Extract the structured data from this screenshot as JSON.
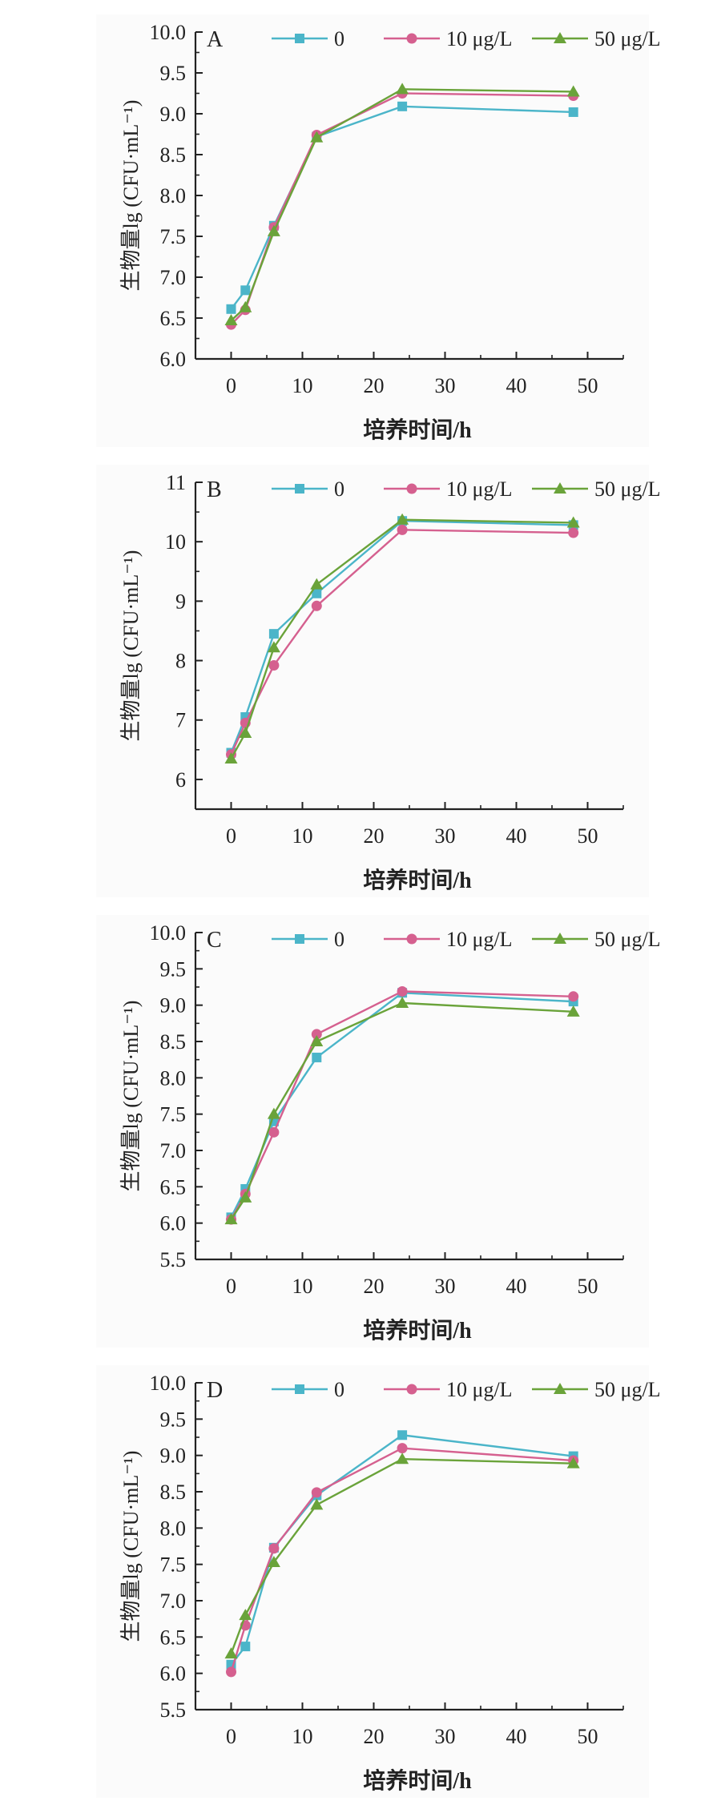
{
  "figure": {
    "series_legend": [
      {
        "name": "0",
        "color": "#4bb5c9",
        "marker": "square"
      },
      {
        "name": "10 μg/L",
        "color": "#d5608f",
        "marker": "circle"
      },
      {
        "name": "50 μg/L",
        "color": "#6aa33a",
        "marker": "triangle"
      }
    ]
  },
  "chart_data": [
    {
      "type": "line",
      "panel": "A",
      "xlabel": "培养时间/h",
      "ylabel": "生物量lg (CFU·mL⁻¹)",
      "x": [
        0,
        2,
        6,
        12,
        24,
        48
      ],
      "xlim": [
        -5,
        55
      ],
      "xticks": [
        "0",
        "10",
        "20",
        "30",
        "40",
        "50"
      ],
      "ylim": [
        6.0,
        10.0
      ],
      "yticks": [
        "6.0",
        "6.5",
        "7.0",
        "7.5",
        "8.0",
        "8.5",
        "9.0",
        "9.5",
        "10.0"
      ],
      "legend": "top",
      "series": [
        {
          "name": "0",
          "values": [
            6.61,
            6.84,
            7.63,
            8.72,
            9.09,
            9.02
          ]
        },
        {
          "name": "10 μg/L",
          "values": [
            6.42,
            6.6,
            7.61,
            8.74,
            9.25,
            9.22
          ]
        },
        {
          "name": "50 μg/L",
          "values": [
            6.47,
            6.63,
            7.56,
            8.71,
            9.3,
            9.27
          ]
        }
      ]
    },
    {
      "type": "line",
      "panel": "B",
      "xlabel": "培养时间/h",
      "ylabel": "生物量lg (CFU·mL⁻¹)",
      "x": [
        0,
        2,
        6,
        12,
        24,
        48
      ],
      "xlim": [
        -5,
        55
      ],
      "xticks": [
        "0",
        "10",
        "20",
        "30",
        "40",
        "50"
      ],
      "ylim": [
        5.5,
        11
      ],
      "yticks": [
        "6",
        "7",
        "8",
        "9",
        "10",
        "11"
      ],
      "legend": "top",
      "series": [
        {
          "name": "0",
          "values": [
            6.45,
            7.05,
            8.45,
            9.13,
            10.35,
            10.28
          ]
        },
        {
          "name": "10 μg/L",
          "values": [
            6.42,
            6.95,
            7.92,
            8.92,
            10.2,
            10.15
          ]
        },
        {
          "name": "50 μg/L",
          "values": [
            6.35,
            6.78,
            8.22,
            9.28,
            10.37,
            10.32
          ]
        }
      ]
    },
    {
      "type": "line",
      "panel": "C",
      "xlabel": "培养时间/h",
      "ylabel": "生物量lg (CFU·mL⁻¹)",
      "x": [
        0,
        2,
        6,
        12,
        24,
        48
      ],
      "xlim": [
        -5,
        55
      ],
      "xticks": [
        "0",
        "10",
        "20",
        "30",
        "40",
        "50"
      ],
      "ylim": [
        5.5,
        10.0
      ],
      "yticks": [
        "5.5",
        "6.0",
        "6.5",
        "7.0",
        "7.5",
        "8.0",
        "8.5",
        "9.0",
        "9.5",
        "10.0"
      ],
      "legend": "top",
      "series": [
        {
          "name": "0",
          "values": [
            6.08,
            6.47,
            7.4,
            8.28,
            9.17,
            9.05
          ]
        },
        {
          "name": "10 μg/L",
          "values": [
            6.05,
            6.4,
            7.25,
            8.6,
            9.19,
            9.12
          ]
        },
        {
          "name": "50 μg/L",
          "values": [
            6.05,
            6.35,
            7.5,
            8.5,
            9.03,
            8.91
          ]
        }
      ]
    },
    {
      "type": "line",
      "panel": "D",
      "xlabel": "培养时间/h",
      "ylabel": "生物量lg (CFU·mL⁻¹)",
      "x": [
        0,
        2,
        6,
        12,
        24,
        48
      ],
      "xlim": [
        -5,
        55
      ],
      "xticks": [
        "0",
        "10",
        "20",
        "30",
        "40",
        "50"
      ],
      "ylim": [
        5.5,
        10.0
      ],
      "yticks": [
        "5.5",
        "6.0",
        "6.5",
        "7.0",
        "7.5",
        "8.0",
        "8.5",
        "9.0",
        "9.5",
        "10.0"
      ],
      "legend": "top",
      "series": [
        {
          "name": "0",
          "values": [
            6.12,
            6.37,
            7.73,
            8.45,
            9.28,
            8.99
          ]
        },
        {
          "name": "10 μg/L",
          "values": [
            6.02,
            6.66,
            7.72,
            8.49,
            9.1,
            8.93
          ]
        },
        {
          "name": "50 μg/L",
          "values": [
            6.27,
            6.8,
            7.53,
            8.32,
            8.95,
            8.89
          ]
        }
      ]
    }
  ]
}
